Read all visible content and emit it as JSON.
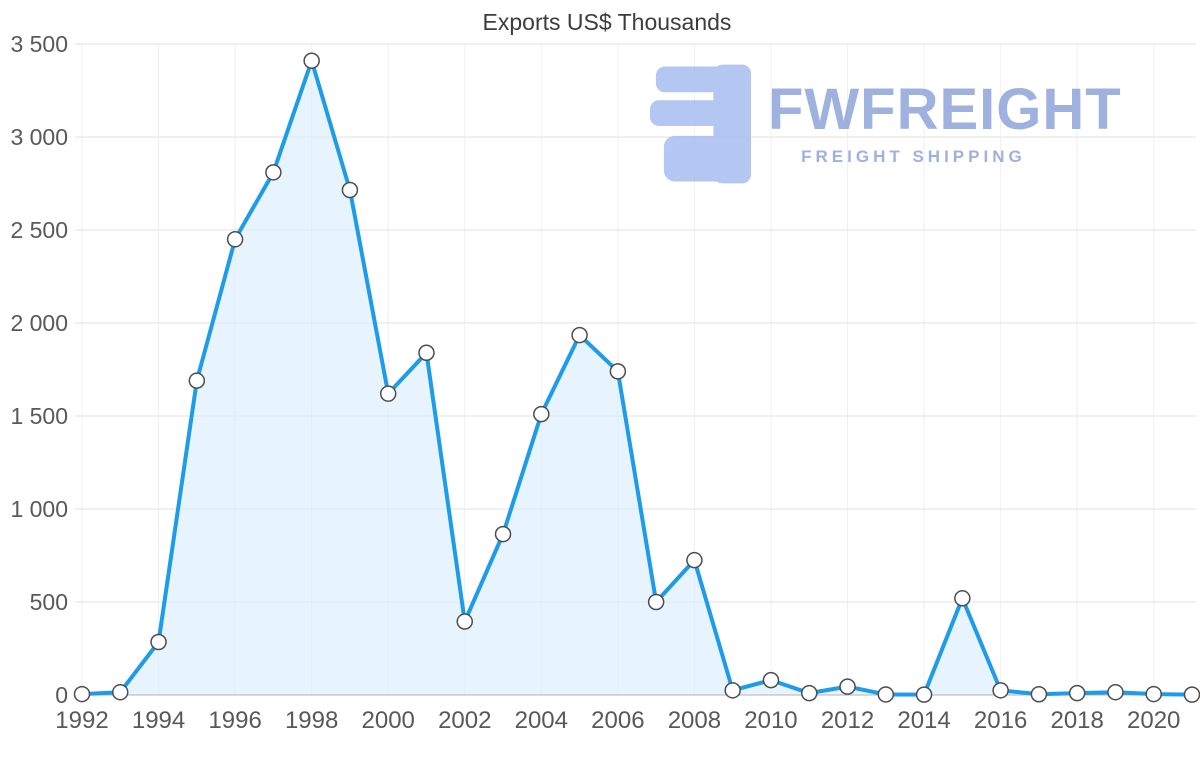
{
  "chart_data": {
    "type": "area",
    "title": "Exports US$ Thousands",
    "x": [
      1992,
      1993,
      1994,
      1995,
      1996,
      1997,
      1998,
      1999,
      2000,
      2001,
      2002,
      2003,
      2004,
      2005,
      2006,
      2007,
      2008,
      2009,
      2010,
      2011,
      2012,
      2013,
      2014,
      2015,
      2016,
      2017,
      2018,
      2019,
      2020,
      2021
    ],
    "values": [
      5,
      15,
      285,
      1690,
      2450,
      2810,
      3410,
      2715,
      1620,
      1840,
      395,
      865,
      1510,
      1935,
      1740,
      500,
      725,
      25,
      80,
      10,
      45,
      3,
      2,
      520,
      25,
      4,
      10,
      15,
      5,
      2
    ],
    "xlabel": "",
    "ylabel": "",
    "ylim": [
      0,
      3500
    ],
    "xlim": [
      1992,
      2021
    ],
    "yticks": [
      0,
      500,
      1000,
      1500,
      2000,
      2500,
      3000,
      3500
    ],
    "ytick_labels": [
      "0",
      "500",
      "1 000",
      "1 500",
      "2 000",
      "2 500",
      "3 000",
      "3 500"
    ],
    "xticks": [
      1992,
      1994,
      1996,
      1998,
      2000,
      2002,
      2004,
      2006,
      2008,
      2010,
      2012,
      2014,
      2016,
      2018,
      2020
    ],
    "grid": true,
    "legend": "none",
    "colors": {
      "line": "#1e9be9",
      "fill": "#d9ecfb",
      "marker_fill": "#ffffff",
      "marker_stroke": "#4d4d4d",
      "grid": "#e2e2e2",
      "grid_minor": "#f0f0f0",
      "axis_line": "#b3b3b3",
      "label": "#595959",
      "title": "#3d3d3d"
    }
  },
  "watermark": {
    "brand": "FWFREIGHT",
    "tagline": "FREIGHT SHIPPING",
    "color": "#8ea4da",
    "icon_color": "#a7bdf0"
  }
}
